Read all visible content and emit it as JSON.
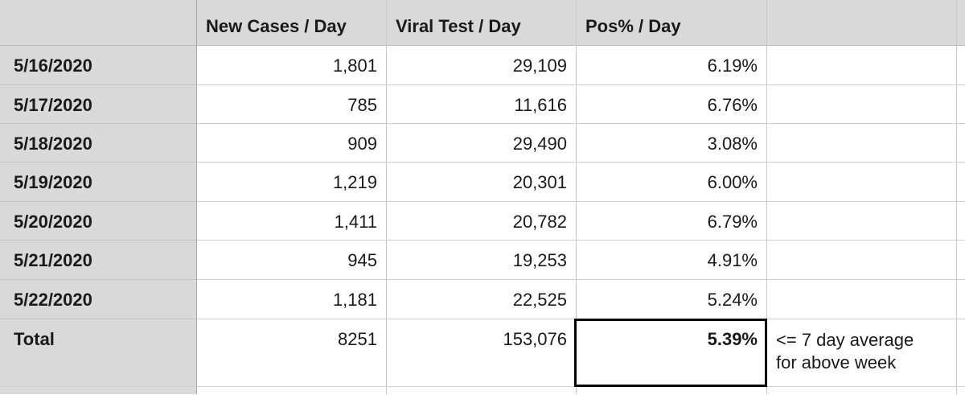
{
  "columns": [
    "",
    "New Cases / Day",
    "Viral Test / Day",
    "Pos% / Day",
    ""
  ],
  "rows": [
    {
      "date": "5/16/2020",
      "new_cases": "1,801",
      "viral_tests": "29,109",
      "pos_pct": "6.19%"
    },
    {
      "date": "5/17/2020",
      "new_cases": "785",
      "viral_tests": "11,616",
      "pos_pct": "6.76%"
    },
    {
      "date": "5/18/2020",
      "new_cases": "909",
      "viral_tests": "29,490",
      "pos_pct": "3.08%"
    },
    {
      "date": "5/19/2020",
      "new_cases": "1,219",
      "viral_tests": "20,301",
      "pos_pct": "6.00%"
    },
    {
      "date": "5/20/2020",
      "new_cases": "1,411",
      "viral_tests": "20,782",
      "pos_pct": "6.79%"
    },
    {
      "date": "5/21/2020",
      "new_cases": "945",
      "viral_tests": "19,253",
      "pos_pct": "4.91%"
    },
    {
      "date": "5/22/2020",
      "new_cases": "1,181",
      "viral_tests": "22,525",
      "pos_pct": "5.24%"
    }
  ],
  "total": {
    "label": "Total",
    "new_cases": "8251",
    "viral_tests": "153,076",
    "pos_pct": "5.39%"
  },
  "note": {
    "line1": "<= 7 day average",
    "line2": "for above week"
  }
}
